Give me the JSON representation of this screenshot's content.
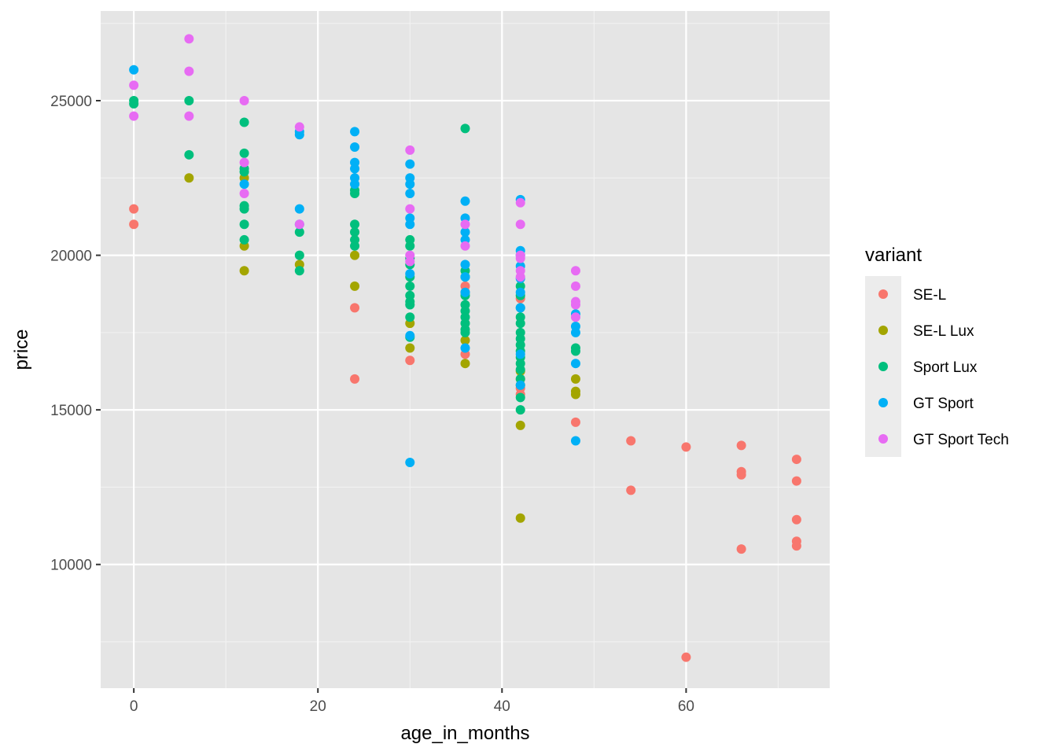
{
  "chart_data": {
    "type": "scatter",
    "title": "",
    "xlabel": "age_in_months",
    "ylabel": "price",
    "xlim": [
      -3.6,
      75.6
    ],
    "ylim": [
      6000,
      27900
    ],
    "x_ticks": [
      0,
      20,
      40,
      60
    ],
    "y_ticks": [
      10000,
      15000,
      20000,
      25000
    ],
    "x_tick_labels": [
      "0",
      "20",
      "40",
      "60"
    ],
    "y_tick_labels": [
      "10000",
      "15000",
      "20000",
      "25000"
    ],
    "grid": true,
    "background": "#e5e5e5",
    "legend": {
      "title": "variant",
      "position": "right"
    },
    "series": [
      {
        "name": "SE-L",
        "color": "#F8766D",
        "points": [
          [
            0,
            21500
          ],
          [
            0,
            21000
          ],
          [
            24,
            18300
          ],
          [
            24,
            16000
          ],
          [
            30,
            16600
          ],
          [
            36,
            19000
          ],
          [
            36,
            18800
          ],
          [
            36,
            16800
          ],
          [
            42,
            18600
          ],
          [
            42,
            16000
          ],
          [
            42,
            15700
          ],
          [
            42,
            15500
          ],
          [
            48,
            14600
          ],
          [
            54,
            14000
          ],
          [
            54,
            12400
          ],
          [
            60,
            13800
          ],
          [
            60,
            7000
          ],
          [
            66,
            13850
          ],
          [
            66,
            13000
          ],
          [
            66,
            12900
          ],
          [
            66,
            10500
          ],
          [
            72,
            13400
          ],
          [
            72,
            12700
          ],
          [
            72,
            11450
          ],
          [
            72,
            10750
          ],
          [
            72,
            10600
          ]
        ]
      },
      {
        "name": "SE-L Lux",
        "color": "#A3A500",
        "points": [
          [
            6,
            22500
          ],
          [
            12,
            22500
          ],
          [
            12,
            20300
          ],
          [
            12,
            19500
          ],
          [
            18,
            19700
          ],
          [
            24,
            20000
          ],
          [
            24,
            19000
          ],
          [
            30,
            17800
          ],
          [
            30,
            17000
          ],
          [
            36,
            17250
          ],
          [
            36,
            16500
          ],
          [
            42,
            16250
          ],
          [
            42,
            15800
          ],
          [
            42,
            14500
          ],
          [
            42,
            11500
          ],
          [
            48,
            16000
          ],
          [
            48,
            15600
          ],
          [
            48,
            15500
          ]
        ]
      },
      {
        "name": "Sport Lux",
        "color": "#00BF7D",
        "points": [
          [
            0,
            25000
          ],
          [
            0,
            24900
          ],
          [
            6,
            25000
          ],
          [
            6,
            23250
          ],
          [
            12,
            24300
          ],
          [
            12,
            23300
          ],
          [
            12,
            22800
          ],
          [
            12,
            22700
          ],
          [
            12,
            21600
          ],
          [
            12,
            21500
          ],
          [
            12,
            21000
          ],
          [
            12,
            20500
          ],
          [
            18,
            20750
          ],
          [
            18,
            20000
          ],
          [
            18,
            19500
          ],
          [
            24,
            22100
          ],
          [
            24,
            22000
          ],
          [
            24,
            21000
          ],
          [
            24,
            20750
          ],
          [
            24,
            20500
          ],
          [
            24,
            20300
          ],
          [
            30,
            20500
          ],
          [
            30,
            20300
          ],
          [
            30,
            19900
          ],
          [
            30,
            19700
          ],
          [
            30,
            19300
          ],
          [
            30,
            19000
          ],
          [
            30,
            18700
          ],
          [
            30,
            18500
          ],
          [
            30,
            18400
          ],
          [
            30,
            18000
          ],
          [
            30,
            17350
          ],
          [
            36,
            24100
          ],
          [
            36,
            19500
          ],
          [
            36,
            19300
          ],
          [
            36,
            18700
          ],
          [
            36,
            18400
          ],
          [
            36,
            18200
          ],
          [
            36,
            18000
          ],
          [
            36,
            17800
          ],
          [
            36,
            17600
          ],
          [
            36,
            17500
          ],
          [
            42,
            19000
          ],
          [
            42,
            18700
          ],
          [
            42,
            18300
          ],
          [
            42,
            18000
          ],
          [
            42,
            17800
          ],
          [
            42,
            17500
          ],
          [
            42,
            17300
          ],
          [
            42,
            17100
          ],
          [
            42,
            16900
          ],
          [
            42,
            16700
          ],
          [
            42,
            16500
          ],
          [
            42,
            16300
          ],
          [
            42,
            16000
          ],
          [
            42,
            15400
          ],
          [
            42,
            15000
          ],
          [
            48,
            17000
          ],
          [
            48,
            16900
          ]
        ]
      },
      {
        "name": "GT Sport",
        "color": "#00B0F6",
        "points": [
          [
            0,
            26000
          ],
          [
            12,
            22300
          ],
          [
            18,
            24000
          ],
          [
            18,
            23900
          ],
          [
            18,
            21500
          ],
          [
            18,
            21000
          ],
          [
            24,
            24000
          ],
          [
            24,
            23500
          ],
          [
            24,
            23000
          ],
          [
            24,
            22800
          ],
          [
            24,
            22500
          ],
          [
            24,
            22300
          ],
          [
            30,
            22950
          ],
          [
            30,
            22500
          ],
          [
            30,
            22300
          ],
          [
            30,
            22000
          ],
          [
            30,
            21200
          ],
          [
            30,
            21000
          ],
          [
            30,
            19400
          ],
          [
            30,
            17400
          ],
          [
            30,
            13300
          ],
          [
            36,
            21750
          ],
          [
            36,
            21200
          ],
          [
            36,
            20750
          ],
          [
            36,
            20500
          ],
          [
            36,
            19700
          ],
          [
            36,
            19300
          ],
          [
            36,
            18800
          ],
          [
            36,
            17000
          ],
          [
            42,
            21800
          ],
          [
            42,
            20150
          ],
          [
            42,
            20000
          ],
          [
            42,
            19650
          ],
          [
            42,
            19250
          ],
          [
            42,
            18800
          ],
          [
            42,
            18300
          ],
          [
            42,
            16800
          ],
          [
            42,
            15800
          ],
          [
            48,
            18100
          ],
          [
            48,
            17700
          ],
          [
            48,
            17500
          ],
          [
            48,
            16500
          ],
          [
            48,
            14000
          ]
        ]
      },
      {
        "name": "GT Sport Tech",
        "color": "#E76BF3",
        "points": [
          [
            0,
            25500
          ],
          [
            0,
            24500
          ],
          [
            6,
            27000
          ],
          [
            6,
            25950
          ],
          [
            6,
            24500
          ],
          [
            12,
            25000
          ],
          [
            12,
            23000
          ],
          [
            12,
            22000
          ],
          [
            18,
            24150
          ],
          [
            18,
            21000
          ],
          [
            30,
            23400
          ],
          [
            30,
            21500
          ],
          [
            30,
            20000
          ],
          [
            30,
            19800
          ],
          [
            36,
            21000
          ],
          [
            36,
            20300
          ],
          [
            42,
            21700
          ],
          [
            42,
            21000
          ],
          [
            42,
            20000
          ],
          [
            42,
            19900
          ],
          [
            42,
            19500
          ],
          [
            42,
            19300
          ],
          [
            48,
            19500
          ],
          [
            48,
            19000
          ],
          [
            48,
            18500
          ],
          [
            48,
            18400
          ],
          [
            48,
            18000
          ]
        ]
      }
    ]
  }
}
